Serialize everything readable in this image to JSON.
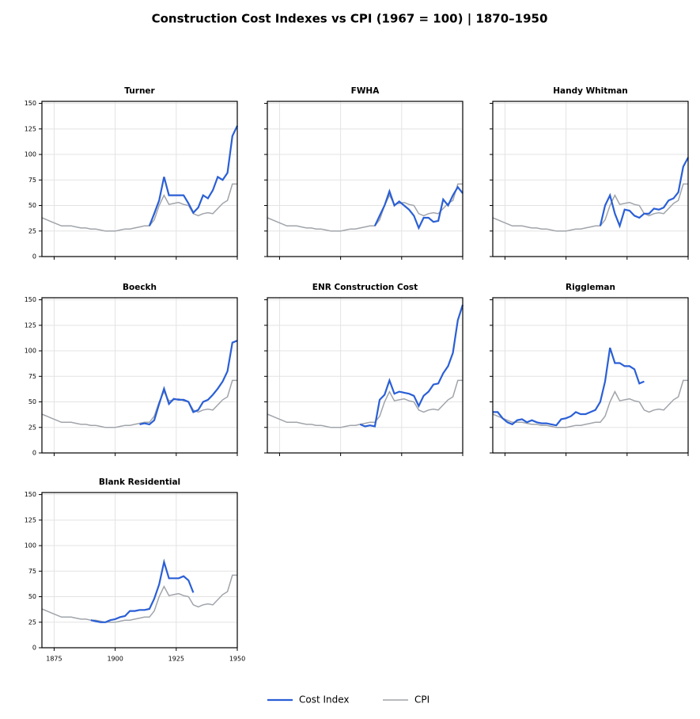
{
  "title": "Construction Cost Indexes vs CPI  (1967 = 100)  |  1870–1950",
  "x": [
    1870,
    1872,
    1874,
    1876,
    1878,
    1880,
    1882,
    1884,
    1886,
    1888,
    1890,
    1892,
    1894,
    1896,
    1898,
    1900,
    1902,
    1904,
    1906,
    1908,
    1910,
    1912,
    1914,
    1916,
    1918,
    1920,
    1922,
    1924,
    1926,
    1928,
    1930,
    1932,
    1934,
    1936,
    1938,
    1940,
    1942,
    1944,
    1946,
    1948,
    1950
  ],
  "xlim": [
    1870,
    1950
  ],
  "xticks": [
    1875,
    1900,
    1925,
    1950
  ],
  "ylim": [
    0,
    152
  ],
  "yticks": [
    0,
    25,
    50,
    75,
    100,
    125,
    150
  ],
  "grid": true,
  "cost_index": {
    "name": "Cost Index",
    "color": "#2a5fd6"
  },
  "cpi": {
    "name": "CPI",
    "color": "#a0a4aa",
    "values": [
      38,
      36,
      34,
      32,
      30,
      30,
      30,
      29,
      28,
      28,
      27,
      27,
      26,
      25,
      25,
      25,
      26,
      27,
      27,
      28,
      29,
      30,
      30,
      36,
      50,
      60,
      51,
      52,
      53,
      51,
      50,
      42,
      40,
      42,
      43,
      42,
      47,
      52,
      55,
      71,
      71
    ]
  },
  "chart_data": [
    {
      "type": "line",
      "title": "Turner",
      "values": [
        null,
        null,
        null,
        null,
        null,
        null,
        null,
        null,
        null,
        null,
        null,
        null,
        null,
        null,
        null,
        null,
        null,
        null,
        null,
        null,
        null,
        null,
        30,
        42,
        55,
        78,
        60,
        60,
        60,
        60,
        52,
        43,
        48,
        60,
        57,
        65,
        78,
        75,
        82,
        118,
        128
      ]
    },
    {
      "type": "line",
      "title": "FWHA",
      "values": [
        null,
        null,
        null,
        null,
        null,
        null,
        null,
        null,
        null,
        null,
        null,
        null,
        null,
        null,
        null,
        null,
        null,
        null,
        null,
        null,
        null,
        null,
        30,
        40,
        50,
        64,
        50,
        54,
        50,
        46,
        40,
        28,
        38,
        38,
        34,
        35,
        56,
        50,
        60,
        68,
        62
      ]
    },
    {
      "type": "line",
      "title": "Handy Whitman",
      "values": [
        null,
        null,
        null,
        null,
        null,
        null,
        null,
        null,
        null,
        null,
        null,
        null,
        null,
        null,
        null,
        null,
        null,
        null,
        null,
        null,
        null,
        null,
        30,
        50,
        60,
        42,
        30,
        46,
        45,
        40,
        38,
        42,
        42,
        47,
        46,
        48,
        55,
        57,
        63,
        88,
        97
      ]
    },
    {
      "type": "line",
      "title": "Boeckh",
      "values": [
        null,
        null,
        null,
        null,
        null,
        null,
        null,
        null,
        null,
        null,
        null,
        null,
        null,
        null,
        null,
        null,
        null,
        null,
        null,
        null,
        28,
        29,
        28,
        32,
        48,
        63,
        48,
        53,
        52,
        52,
        50,
        40,
        42,
        50,
        52,
        57,
        63,
        70,
        80,
        108,
        110
      ]
    },
    {
      "type": "line",
      "title": "ENR Construction Cost",
      "values": [
        null,
        null,
        null,
        null,
        null,
        null,
        null,
        null,
        null,
        null,
        null,
        null,
        null,
        null,
        null,
        null,
        null,
        null,
        null,
        28,
        26,
        27,
        26,
        52,
        57,
        71,
        58,
        60,
        59,
        58,
        56,
        46,
        56,
        60,
        67,
        68,
        78,
        85,
        98,
        130,
        145
      ]
    },
    {
      "type": "line",
      "title": "Riggleman",
      "values": [
        40,
        40,
        34,
        30,
        28,
        32,
        33,
        30,
        32,
        30,
        29,
        29,
        28,
        27,
        33,
        34,
        36,
        40,
        38,
        38,
        40,
        42,
        50,
        70,
        103,
        88,
        88,
        85,
        85,
        82,
        68,
        70,
        null,
        null,
        null,
        null,
        null,
        null,
        null,
        null,
        null
      ]
    },
    {
      "type": "line",
      "title": "Blank Residential",
      "values": [
        null,
        null,
        null,
        null,
        null,
        null,
        null,
        null,
        null,
        null,
        27,
        26,
        25,
        25,
        27,
        28,
        30,
        31,
        36,
        36,
        37,
        37,
        38,
        48,
        62,
        84,
        68,
        68,
        68,
        70,
        66,
        54,
        null,
        null,
        null,
        null,
        null,
        null,
        null,
        null,
        null
      ]
    }
  ]
}
